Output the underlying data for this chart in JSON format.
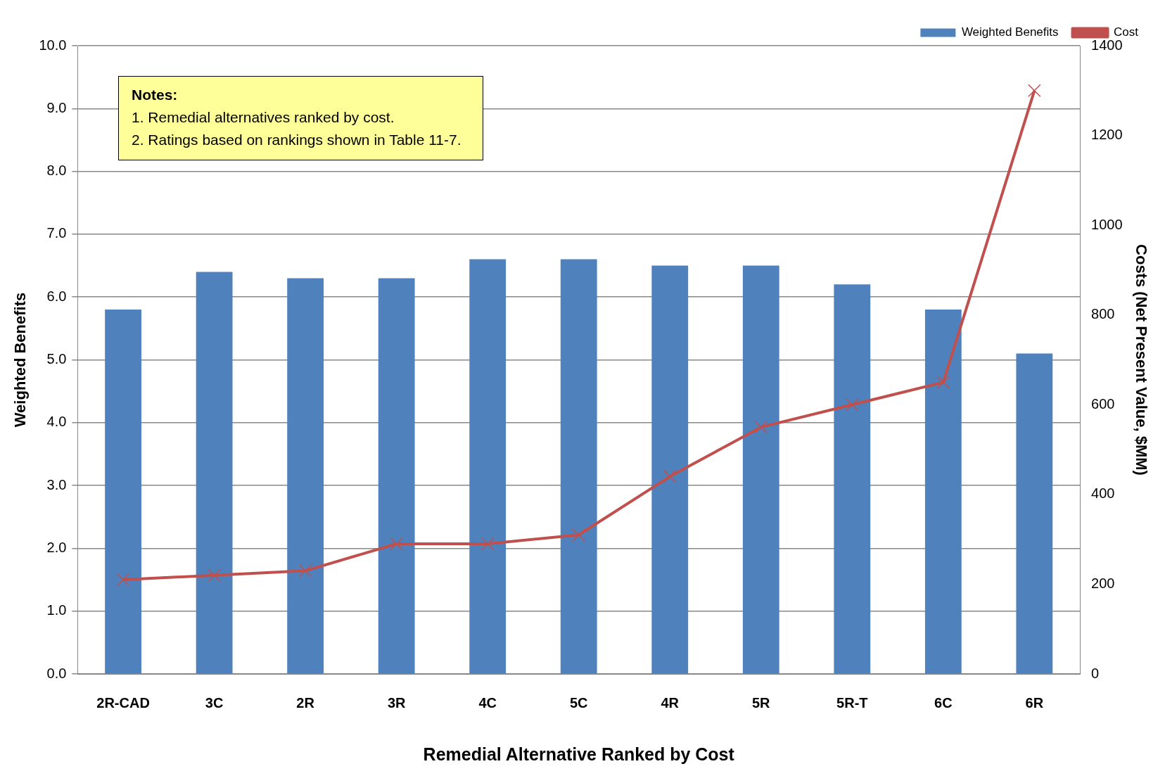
{
  "chart_data": {
    "type": "bar",
    "xlabel": "Remedial Alternative Ranked by Cost",
    "ylabel": "Weighted Benefits",
    "y2label": "Costs (Net Present Value, $MM)",
    "categories": [
      "2R-CAD",
      "3C",
      "2R",
      "3R",
      "4C",
      "5C",
      "4R",
      "5R",
      "5R-T",
      "6C",
      "6R"
    ],
    "series": [
      {
        "name": "Weighted Benefits",
        "color": "#4f81bd",
        "values": [
          5.8,
          6.4,
          6.3,
          6.3,
          6.6,
          6.6,
          6.5,
          6.5,
          6.2,
          5.8,
          5.1
        ]
      },
      {
        "name": "Cost",
        "type": "line",
        "axis": "y2",
        "color": "#c0504d",
        "marker": "cross",
        "values": [
          210,
          220,
          230,
          290,
          290,
          310,
          440,
          550,
          600,
          650,
          1300
        ]
      }
    ],
    "ylim": [
      0,
      10
    ],
    "yticks": [
      {
        "value": 0,
        "label": "0.0"
      },
      {
        "value": 1,
        "label": "1.0"
      },
      {
        "value": 2,
        "label": "2.0"
      },
      {
        "value": 3,
        "label": "3.0"
      },
      {
        "value": 4,
        "label": "4.0"
      },
      {
        "value": 5,
        "label": "5.0"
      },
      {
        "value": 6,
        "label": "6.0"
      },
      {
        "value": 7,
        "label": "7.0"
      },
      {
        "value": 8,
        "label": "8.0"
      },
      {
        "value": 9,
        "label": "9.0"
      },
      {
        "value": 10,
        "label": "10.0"
      }
    ],
    "y2lim": [
      0,
      1400
    ],
    "y2ticks": [
      0,
      200,
      400,
      600,
      800,
      1000,
      1200,
      1400
    ],
    "grid": "y",
    "legend": "top right",
    "annotations": [
      "Notes:",
      "1. Remedial alternatives ranked by cost.",
      "2. Ratings based on rankings shown in Table 11-7."
    ]
  }
}
